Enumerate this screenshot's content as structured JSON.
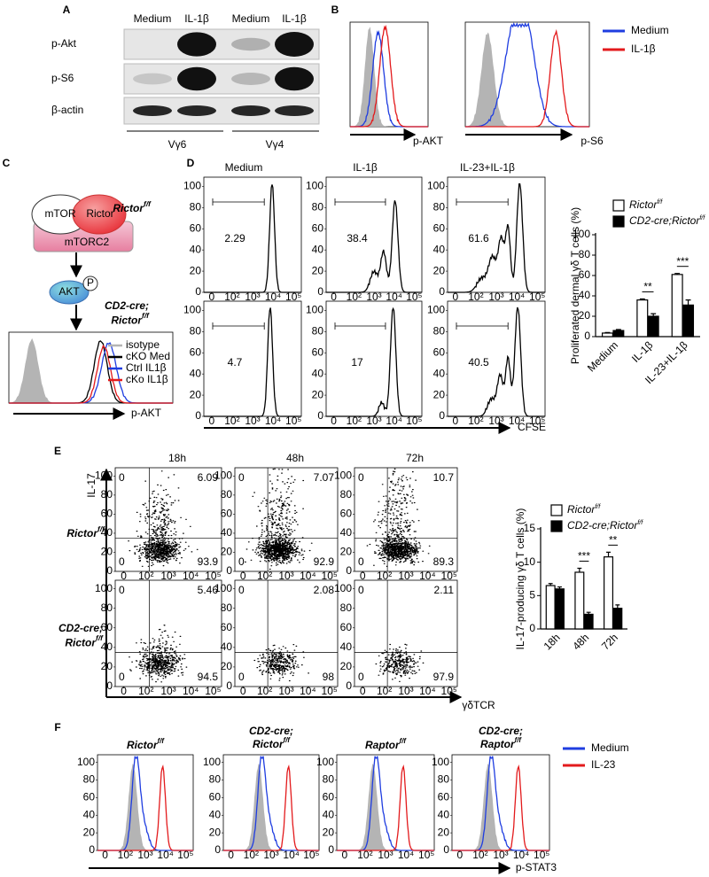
{
  "panel_labels": [
    "A",
    "B",
    "C",
    "D",
    "E",
    "F"
  ],
  "panel_a": {
    "lanes": [
      "Medium",
      "IL-1β",
      "Medium",
      "IL-1β"
    ],
    "rows": [
      "p-Akt",
      "p-S6",
      "β-actin"
    ],
    "groups": [
      "Vγ6",
      "Vγ4"
    ]
  },
  "panel_b": {
    "axis_labels": [
      "p-AKT",
      "p-S6"
    ],
    "legend": [
      "Medium",
      "IL-1β"
    ]
  },
  "panel_c": {
    "nodes": [
      "mTOR",
      "Rictor",
      "mTORC2",
      "AKT",
      "P"
    ],
    "legend": [
      "isotype",
      "cKO Med",
      "Ctrl IL1β",
      "cKo IL1β"
    ],
    "axis_label": "p-AKT"
  },
  "genotypes": {
    "control": {
      "name": "Rictor",
      "sup": "f/f"
    },
    "cko": {
      "prefix": "CD2-cre;",
      "name": "Rictor",
      "sup": "f/f"
    },
    "raptor_control": {
      "name": "Raptor",
      "sup": "f/f"
    },
    "raptor_cko": {
      "prefix": "CD2-cre;",
      "name": "Raptor",
      "sup": "f/f"
    }
  },
  "hist_axis": {
    "yticks": [
      0,
      20,
      40,
      60,
      80,
      100
    ],
    "xticks": [
      {
        "value": 0,
        "label": "0"
      },
      {
        "value": 2,
        "label": "10²"
      },
      {
        "value": 3,
        "label": "10³"
      },
      {
        "value": 4,
        "label": "10⁴"
      },
      {
        "value": 5,
        "label": "10⁵"
      }
    ]
  },
  "panel_d": {
    "columns": [
      "Medium",
      "IL-1β",
      "IL-23+IL-1β"
    ],
    "percentages": [
      [
        2.29,
        38.4,
        61.6
      ],
      [
        4.7,
        17,
        40.5
      ]
    ],
    "axis_label": "CFSE"
  },
  "panel_e": {
    "columns": [
      "18h",
      "48h",
      "72h"
    ],
    "quadrants": [
      [
        [
          0,
          6.09,
          0,
          93.9
        ],
        [
          0,
          7.07,
          0,
          92.9
        ],
        [
          0,
          10.7,
          0,
          89.3
        ]
      ],
      [
        [
          0,
          5.46,
          0,
          94.5
        ],
        [
          0,
          2.08,
          0,
          98
        ],
        [
          0,
          2.11,
          0,
          97.9
        ]
      ]
    ],
    "y_axis_label": "IL-17",
    "x_axis_label": "γδTCR"
  },
  "panel_f": {
    "axis_label": "p-STAT3",
    "legend": [
      "Medium",
      "IL-23"
    ]
  },
  "chart_data": [
    {
      "type": "bar",
      "y_label": "Proliferated dermal γδ T cells (%)",
      "categories": [
        "Medium",
        "IL-1β",
        "IL-23+IL-1β"
      ],
      "series": [
        {
          "name": "Rictor",
          "name_sup": "f/f",
          "color": "#ffffff",
          "values": [
            3.5,
            36,
            61
          ],
          "errors": [
            0.5,
            1,
            1
          ]
        },
        {
          "name": "CD2-cre;Rictor",
          "name_sup": "f/f",
          "color": "#000000",
          "values": [
            6,
            20,
            31
          ],
          "errors": [
            1,
            2.5,
            5
          ]
        }
      ],
      "ylim": [
        0,
        100
      ],
      "yticks": [
        0,
        20,
        40,
        60,
        80,
        100
      ],
      "annotations": [
        {
          "text": "**",
          "category": 1
        },
        {
          "text": "***",
          "category": 2
        }
      ]
    },
    {
      "type": "bar",
      "y_label": "IL-17-producing γδ T cells (%)",
      "categories": [
        "18h",
        "48h",
        "72h"
      ],
      "series": [
        {
          "name": "Rictor",
          "name_sup": "f/f",
          "color": "#ffffff",
          "values": [
            6.5,
            8.5,
            10.8
          ],
          "errors": [
            0.3,
            0.6,
            0.7
          ]
        },
        {
          "name": "CD2-cre;Rictor",
          "name_sup": "f/f",
          "color": "#000000",
          "values": [
            6,
            2.2,
            3.1
          ],
          "errors": [
            0.3,
            0.3,
            0.5
          ]
        }
      ],
      "ylim": [
        0,
        15
      ],
      "yticks": [
        0,
        5,
        10,
        15
      ],
      "annotations": [
        {
          "text": "***",
          "category": 1
        },
        {
          "text": "**",
          "category": 2
        }
      ]
    }
  ]
}
